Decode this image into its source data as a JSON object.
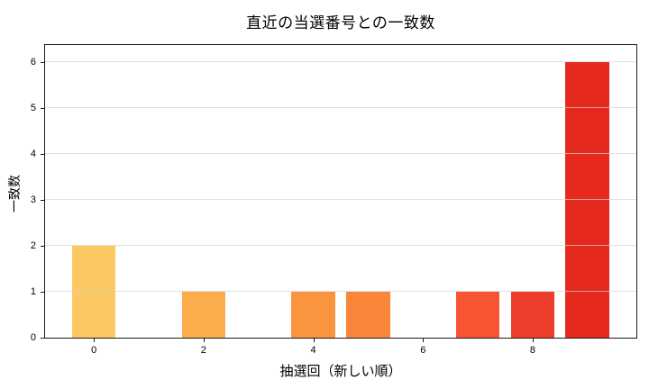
{
  "chart_data": {
    "type": "bar",
    "title": "直近の当選番号との一致数",
    "xlabel": "抽選回（新しい順）",
    "ylabel": "一致数",
    "x": [
      0,
      1,
      2,
      3,
      4,
      5,
      6,
      7,
      8,
      9
    ],
    "values": [
      2,
      0,
      1,
      0,
      1,
      1,
      0,
      1,
      1,
      6
    ],
    "bar_colors": [
      "#fcc863",
      "#feba55",
      "#fbac4b",
      "#fd9d43",
      "#fa953f",
      "#f8873b",
      "#fc5e2e",
      "#f65433",
      "#ef3d2b",
      "#e6291d"
    ],
    "xticks": [
      0,
      2,
      4,
      6,
      8
    ],
    "yticks": [
      0,
      1,
      2,
      3,
      4,
      5,
      6
    ],
    "xlim": [
      -0.89,
      9.89
    ],
    "ylim": [
      0,
      6.37
    ],
    "bar_width": 0.8,
    "grid": {
      "axis": "y",
      "color": "rgba(211,211,211,0.7)",
      "above_bars": true
    },
    "legend": "none",
    "axis_color": "#1a1a1a",
    "background_color": "#ffffff"
  }
}
